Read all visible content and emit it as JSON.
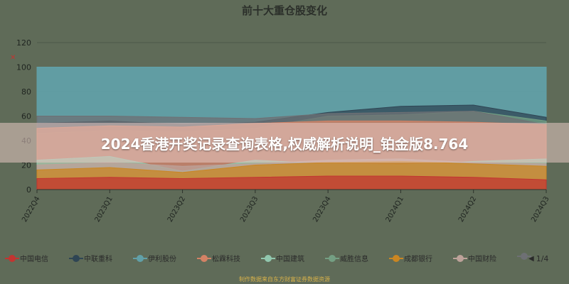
{
  "chart_data": {
    "type": "area",
    "title": "前十大重仓股变化",
    "categories": [
      "2022Q4",
      "2023Q1",
      "2023Q2",
      "2023Q3",
      "2023Q4",
      "2024Q1",
      "2024Q2",
      "2024Q3"
    ],
    "ylim": [
      0,
      120
    ],
    "yticks": [
      0,
      20,
      40,
      60,
      80,
      100,
      120
    ],
    "grid": true,
    "stacked": false,
    "series": [
      {
        "name": "中国电信",
        "color": "#c23531",
        "values": [
          9,
          10,
          9,
          10,
          11,
          11,
          10,
          8
        ]
      },
      {
        "name": "中联重科",
        "color": "#2f4554",
        "values": [
          54,
          56,
          53,
          55,
          63,
          68,
          69,
          59
        ]
      },
      {
        "name": "伊利股份",
        "color": "#61a0a8",
        "values": [
          100,
          100,
          100,
          100,
          100,
          100,
          100,
          100
        ]
      },
      {
        "name": "松霖科技",
        "color": "#d48265",
        "values": [
          50,
          52,
          51,
          54,
          56,
          56,
          55,
          53
        ]
      },
      {
        "name": "中国建筑",
        "color": "#91c7ae",
        "values": [
          24,
          27,
          15,
          24,
          21,
          20,
          23,
          25
        ]
      },
      {
        "name": "威胜信息",
        "color": "#749f83",
        "values": [
          46,
          48,
          47,
          50,
          60,
          61,
          64,
          56
        ]
      },
      {
        "name": "成都银行",
        "color": "#ca8622",
        "values": [
          16,
          18,
          14,
          20,
          22,
          23,
          21,
          19
        ]
      },
      {
        "name": "中国财险",
        "color": "#bda29a",
        "values": [
          20,
          22,
          19,
          21,
          24,
          25,
          22,
          21
        ]
      },
      {
        "name": "",
        "color": "#6e7074",
        "values": [
          60,
          60,
          59,
          58,
          62,
          63,
          64,
          53
        ]
      }
    ],
    "legend_position": "bottom",
    "legend_page": "1/4"
  },
  "y_marker": "✕",
  "banner_text": "2024香港开奖记录查询表格,权威解析说明_铂金版8.764",
  "source_text": "制作数据来自东方财富证券数据资源"
}
